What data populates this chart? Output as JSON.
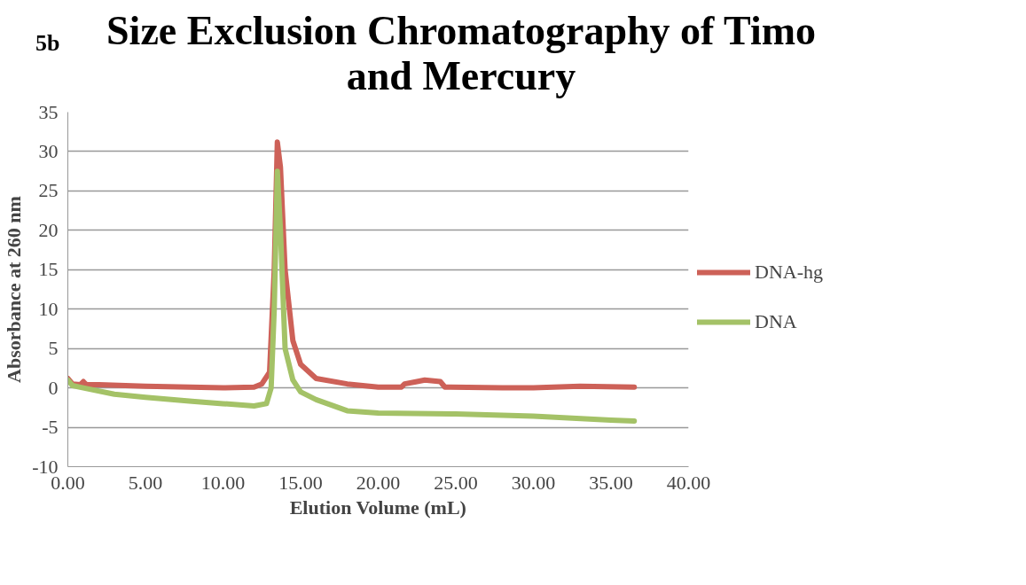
{
  "chart_data": {
    "type": "line",
    "title": "Size Exclusion Chromatography of Timo and Mercury",
    "xlabel": "Elution Volume (mL)",
    "ylabel": "Absorbance at 260 nm",
    "annotations": [
      "5b"
    ],
    "xlim": [
      0,
      40
    ],
    "ylim": [
      -10,
      35
    ],
    "xticks": [
      {
        "value": 0,
        "label": "0.00"
      },
      {
        "value": 5,
        "label": "5.00"
      },
      {
        "value": 10,
        "label": "10.00"
      },
      {
        "value": 15,
        "label": "15.00"
      },
      {
        "value": 20,
        "label": "20.00"
      },
      {
        "value": 25,
        "label": "25.00"
      },
      {
        "value": 30,
        "label": "30.00"
      },
      {
        "value": 35,
        "label": "35.00"
      },
      {
        "value": 40,
        "label": "40.00"
      }
    ],
    "yticks": [
      -10,
      -5,
      0,
      5,
      10,
      15,
      20,
      25,
      30,
      35
    ],
    "grid": "y",
    "legend": "right",
    "marker": "none",
    "line_style": "solid",
    "series": [
      {
        "name": "DNA-hg",
        "color": "#cd6158",
        "x": [
          0,
          0.3,
          0.8,
          1.0,
          1.2,
          2,
          5,
          10,
          12,
          12.5,
          13,
          13.3,
          13.5,
          13.7,
          14,
          14.5,
          15,
          16,
          18,
          20,
          21.5,
          21.7,
          22.5,
          23,
          24,
          24.3,
          28,
          30,
          33,
          36.5
        ],
        "values": [
          1.2,
          0.5,
          0.4,
          0.8,
          0.4,
          0.4,
          0.2,
          0.0,
          0.1,
          0.5,
          2,
          15,
          31.2,
          28,
          15,
          6,
          3,
          1.2,
          0.5,
          0.1,
          0.1,
          0.5,
          0.8,
          1.0,
          0.8,
          0.1,
          0.0,
          0.0,
          0.2,
          0.1
        ]
      },
      {
        "name": "DNA",
        "color": "#a4c267",
        "x": [
          0,
          0.3,
          1,
          3,
          5,
          8,
          10,
          12,
          12.8,
          13.1,
          13.3,
          13.5,
          13.7,
          14,
          14.5,
          15,
          16,
          17,
          18,
          20,
          25,
          30,
          35,
          36.5
        ],
        "values": [
          1.0,
          0.3,
          0.0,
          -0.8,
          -1.2,
          -1.7,
          -2.0,
          -2.3,
          -2.0,
          0,
          10,
          27.5,
          20,
          5,
          1.0,
          -0.5,
          -1.5,
          -2.2,
          -2.9,
          -3.2,
          -3.3,
          -3.6,
          -4.1,
          -4.2
        ]
      }
    ]
  }
}
